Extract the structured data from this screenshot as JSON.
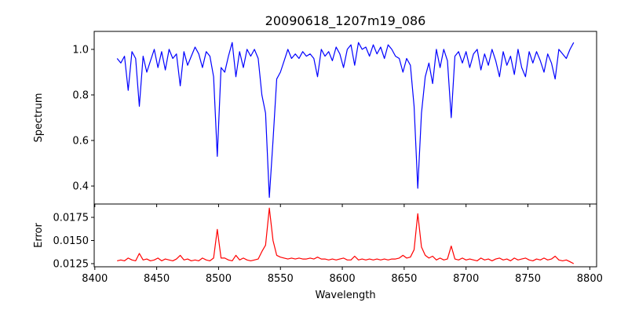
{
  "chart_data": [
    {
      "type": "line",
      "title": "20090618_1207m19_086",
      "xlabel": "",
      "ylabel": "Spectrum",
      "xlim": [
        8399.5,
        8805.5
      ],
      "ylim": [
        0.321,
        1.079
      ],
      "xticks": [
        8400,
        8450,
        8500,
        8550,
        8600,
        8650,
        8700,
        8750,
        8800
      ],
      "yticks": [
        0.4,
        0.6,
        0.8,
        1.0
      ],
      "ytick_labels": [
        "0.4",
        "0.6",
        "0.8",
        "1.0"
      ],
      "color": "#0000ff",
      "x_start": 8418,
      "x_step": 3,
      "values": [
        0.96,
        0.94,
        0.97,
        0.82,
        0.99,
        0.96,
        0.75,
        0.97,
        0.9,
        0.95,
        1.0,
        0.92,
        0.99,
        0.91,
        1.0,
        0.96,
        0.98,
        0.84,
        0.99,
        0.93,
        0.97,
        1.01,
        0.98,
        0.92,
        0.99,
        0.97,
        0.88,
        0.53,
        0.92,
        0.9,
        0.97,
        1.03,
        0.88,
        0.99,
        0.92,
        1.0,
        0.97,
        1.0,
        0.96,
        0.8,
        0.72,
        0.35,
        0.6,
        0.87,
        0.9,
        0.95,
        1.0,
        0.96,
        0.98,
        0.96,
        0.99,
        0.97,
        0.98,
        0.96,
        0.88,
        1.0,
        0.97,
        0.99,
        0.95,
        1.01,
        0.98,
        0.92,
        1.0,
        1.02,
        0.93,
        1.03,
        1.0,
        1.01,
        0.97,
        1.02,
        0.98,
        1.01,
        0.96,
        1.02,
        1.0,
        0.97,
        0.96,
        0.9,
        0.96,
        0.93,
        0.75,
        0.39,
        0.72,
        0.88,
        0.94,
        0.85,
        1.0,
        0.92,
        1.0,
        0.95,
        0.7,
        0.97,
        0.99,
        0.94,
        0.99,
        0.92,
        0.98,
        1.0,
        0.91,
        0.98,
        0.93,
        1.0,
        0.95,
        0.88,
        0.99,
        0.93,
        0.97,
        0.89,
        1.0,
        0.92,
        0.88,
        0.99,
        0.94,
        0.99,
        0.95,
        0.9,
        0.98,
        0.94,
        0.87,
        1.0,
        0.98,
        0.96,
        1.0,
        1.03
      ]
    },
    {
      "type": "line",
      "title": "",
      "xlabel": "Wavelength",
      "ylabel": "Error",
      "xlim": [
        8399.5,
        8805.5
      ],
      "ylim": [
        0.01216,
        0.01894
      ],
      "xticks": [
        8400,
        8450,
        8500,
        8550,
        8600,
        8650,
        8700,
        8750,
        8800
      ],
      "xtick_labels": [
        "8400",
        "8450",
        "8500",
        "8550",
        "8600",
        "8650",
        "8700",
        "8750",
        "8800"
      ],
      "yticks": [
        0.0125,
        0.015,
        0.0175
      ],
      "ytick_labels": [
        "0.0125",
        "0.0150",
        "0.0175"
      ],
      "color": "#ff0000",
      "x_start": 8418,
      "x_step": 3,
      "values": [
        0.0128,
        0.0129,
        0.0128,
        0.0131,
        0.0129,
        0.0128,
        0.0136,
        0.0129,
        0.013,
        0.0128,
        0.0129,
        0.0131,
        0.0128,
        0.013,
        0.0129,
        0.0128,
        0.013,
        0.0134,
        0.0129,
        0.013,
        0.0128,
        0.0129,
        0.0128,
        0.0131,
        0.0129,
        0.0128,
        0.0131,
        0.0162,
        0.0131,
        0.0131,
        0.0129,
        0.0128,
        0.0134,
        0.0129,
        0.0131,
        0.0129,
        0.0128,
        0.0129,
        0.013,
        0.0138,
        0.0145,
        0.0185,
        0.015,
        0.0134,
        0.0132,
        0.0131,
        0.013,
        0.0131,
        0.013,
        0.0131,
        0.013,
        0.013,
        0.0131,
        0.013,
        0.0132,
        0.013,
        0.013,
        0.0129,
        0.013,
        0.0129,
        0.013,
        0.0131,
        0.0129,
        0.0129,
        0.0133,
        0.0129,
        0.013,
        0.0129,
        0.013,
        0.0129,
        0.013,
        0.0129,
        0.013,
        0.0129,
        0.013,
        0.013,
        0.0131,
        0.0134,
        0.0131,
        0.0132,
        0.014,
        0.0179,
        0.0143,
        0.0134,
        0.0131,
        0.0133,
        0.0129,
        0.0131,
        0.0129,
        0.013,
        0.0144,
        0.013,
        0.0129,
        0.0131,
        0.0129,
        0.013,
        0.0129,
        0.0128,
        0.0131,
        0.0129,
        0.013,
        0.0128,
        0.013,
        0.0131,
        0.0129,
        0.013,
        0.0128,
        0.0131,
        0.0129,
        0.013,
        0.0131,
        0.0129,
        0.0128,
        0.013,
        0.0129,
        0.0131,
        0.0129,
        0.013,
        0.0133,
        0.0129,
        0.0128,
        0.0129,
        0.0127,
        0.0125
      ]
    }
  ]
}
